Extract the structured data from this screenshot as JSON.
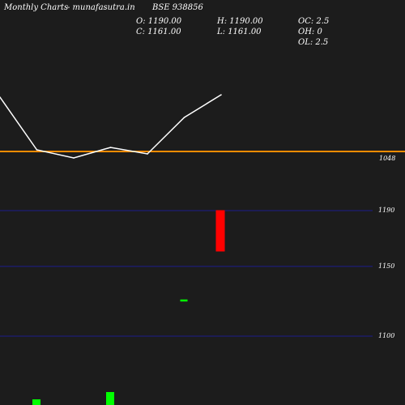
{
  "header": {
    "brand": "Monthly Charts",
    "site": "- munafasutra.in",
    "symbol": "BSE 938856",
    "open": "O: 1190.00",
    "high": "H: 1190.00",
    "oc": "OC: 2.5",
    "close": "C: 1161.00",
    "low": "L: 1161.00",
    "oh": "OH: 0",
    "ol": "OL: 2.5"
  },
  "colors": {
    "background": "#1c1c1c",
    "line": "#ffffff",
    "reference": "#ff8c00",
    "grid": "#1c1c8c",
    "bear": "#ff0000",
    "bull": "#00ff00"
  },
  "chart_data": [
    {
      "type": "line",
      "x": [
        1,
        2,
        3,
        4,
        5,
        6,
        7
      ],
      "values": [
        1115,
        1050,
        1040,
        1053,
        1045,
        1090,
        1118
      ],
      "reference_line": {
        "value": 1048,
        "label": "1048"
      },
      "grid": false
    },
    {
      "type": "candlestick",
      "y_ticks": [
        1190,
        1150,
        1100
      ],
      "ylim": [
        1060,
        1205
      ],
      "candles": [
        {
          "open": 1190.0,
          "high": 1190.0,
          "low": 1161.0,
          "close": 1161.0,
          "color": "bear"
        },
        {
          "open": 1126.0,
          "high": 1126.0,
          "low": 1126.0,
          "close": 1126.0,
          "color": "bull"
        }
      ]
    },
    {
      "type": "bar",
      "series": "volume",
      "values": [
        2,
        4
      ],
      "ylim": [
        0,
        4
      ]
    }
  ]
}
